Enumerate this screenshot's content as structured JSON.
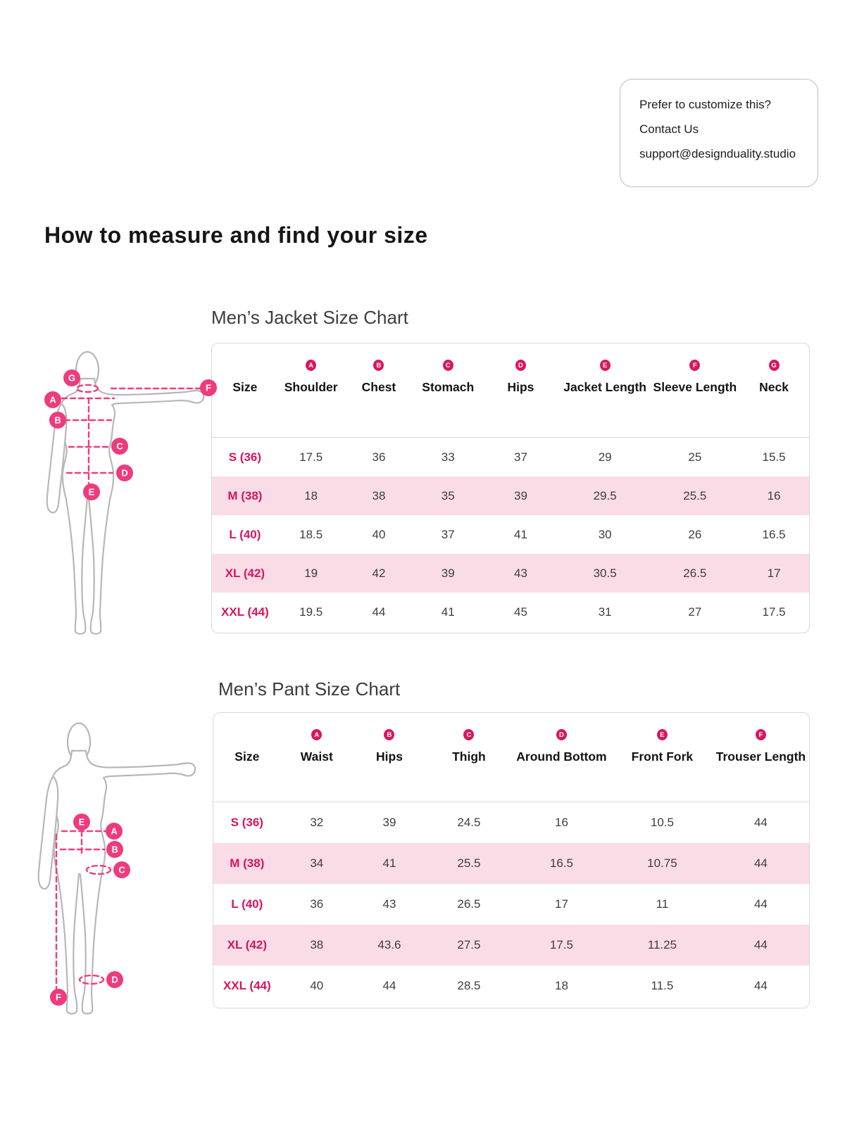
{
  "contact_card": {
    "line1": "Prefer to customize this?",
    "line2": "Contact Us",
    "email": "support@designduality.studio"
  },
  "page_title": "How to measure and find your size",
  "colors": {
    "accent_badge": "#D9175E",
    "figure_marker": "#EE3B7D",
    "row_alt_pink": "#FADCE6",
    "table_border": "#D9D9D1",
    "body_outline": "#B7B7B7"
  },
  "jacket_chart": {
    "title": "Men’s Jacket Size Chart",
    "columns": [
      {
        "label": "Size",
        "badge": ""
      },
      {
        "label": "Shoulder",
        "badge": "A"
      },
      {
        "label": "Chest",
        "badge": "B"
      },
      {
        "label": "Stomach",
        "badge": "C"
      },
      {
        "label": "Hips",
        "badge": "D"
      },
      {
        "label": "Jacket Length",
        "badge": "E"
      },
      {
        "label": "Sleeve Length",
        "badge": "F"
      },
      {
        "label": "Neck",
        "badge": "G"
      }
    ],
    "rows": [
      {
        "size": "S (36)",
        "values": [
          "17.5",
          "36",
          "33",
          "37",
          "29",
          "25",
          "15.5"
        ]
      },
      {
        "size": "M (38)",
        "values": [
          "18",
          "38",
          "35",
          "39",
          "29.5",
          "25.5",
          "16"
        ]
      },
      {
        "size": "L (40)",
        "values": [
          "18.5",
          "40",
          "37",
          "41",
          "30",
          "26",
          "16.5"
        ]
      },
      {
        "size": "XL (42)",
        "values": [
          "19",
          "42",
          "39",
          "43",
          "30.5",
          "26.5",
          "17"
        ]
      },
      {
        "size": "XXL (44)",
        "values": [
          "19.5",
          "44",
          "41",
          "45",
          "31",
          "27",
          "17.5"
        ]
      }
    ],
    "figure_markers": [
      "G",
      "A",
      "B",
      "C",
      "D",
      "E",
      "F"
    ]
  },
  "pant_chart": {
    "title": "Men’s Pant Size Chart",
    "columns": [
      {
        "label": "Size",
        "badge": ""
      },
      {
        "label": "Waist",
        "badge": "A"
      },
      {
        "label": "Hips",
        "badge": "B"
      },
      {
        "label": "Thigh",
        "badge": "C"
      },
      {
        "label": "Around Bottom",
        "badge": "D"
      },
      {
        "label": "Front Fork",
        "badge": "E"
      },
      {
        "label": "Trouser Length",
        "badge": "F"
      }
    ],
    "rows": [
      {
        "size": "S (36)",
        "values": [
          "32",
          "39",
          "24.5",
          "16",
          "10.5",
          "44"
        ]
      },
      {
        "size": "M (38)",
        "values": [
          "34",
          "41",
          "25.5",
          "16.5",
          "10.75",
          "44"
        ]
      },
      {
        "size": "L (40)",
        "values": [
          "36",
          "43",
          "26.5",
          "17",
          "11",
          "44"
        ]
      },
      {
        "size": "XL (42)",
        "values": [
          "38",
          "43.6",
          "27.5",
          "17.5",
          "11.25",
          "44"
        ]
      },
      {
        "size": "XXL (44)",
        "values": [
          "40",
          "44",
          "28.5",
          "18",
          "11.5",
          "44"
        ]
      }
    ],
    "figure_markers": [
      "E",
      "A",
      "B",
      "C",
      "D",
      "F"
    ]
  }
}
